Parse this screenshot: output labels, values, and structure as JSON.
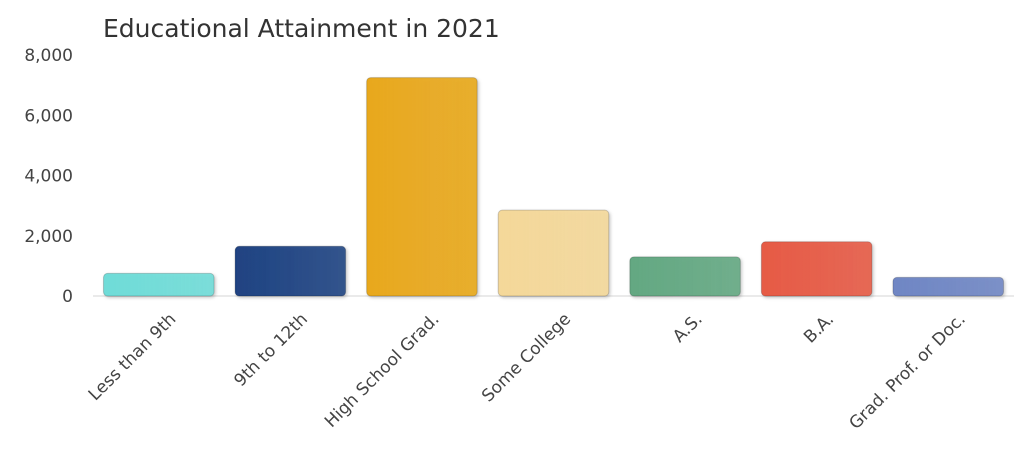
{
  "chart_data": {
    "type": "bar",
    "title": "Educational Attainment in 2021",
    "xlabel": "",
    "ylabel": "",
    "ylim": [
      0,
      8000
    ],
    "yticks": [
      0,
      2000,
      4000,
      6000,
      8000
    ],
    "ytick_labels": [
      "0",
      "2,000",
      "4,000",
      "6,000",
      "8,000"
    ],
    "categories": [
      "Less than 9th",
      "9th to 12th",
      "High School Grad.",
      "Some College",
      "A.S.",
      "B.A.",
      "Grad. Prof. or Doc."
    ],
    "values": [
      750,
      1650,
      7250,
      2850,
      1300,
      1800,
      620
    ],
    "colors": [
      "#6fdcd8",
      "#1f4382",
      "#e8a81b",
      "#f4d899",
      "#63a882",
      "#e65a45",
      "#6f86c4"
    ],
    "grid": false,
    "legend": "none"
  }
}
